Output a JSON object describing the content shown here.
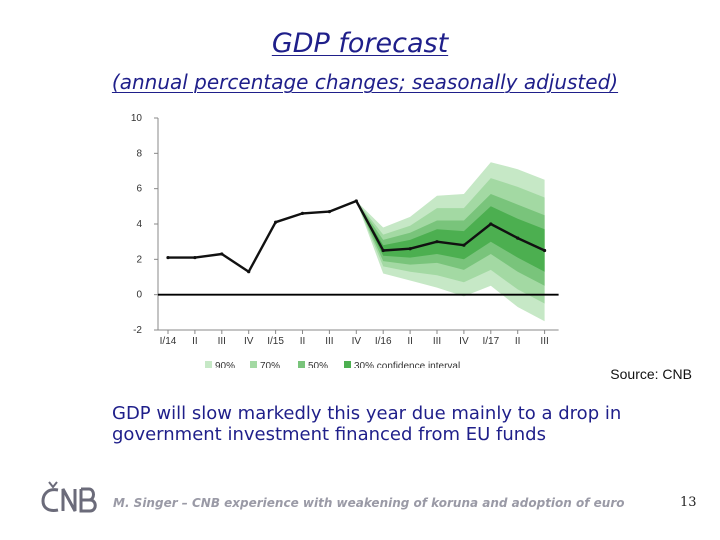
{
  "slide": {
    "title": "GDP forecast",
    "subtitle": "(annual percentage changes; seasonally adjusted)",
    "source": "Source: CNB",
    "body": "GDP will slow markedly this year due mainly to a drop in government investment financed from EU funds",
    "footer": "M. Singer – CNB experience with weakening of koruna and adoption of euro",
    "page_number": "13"
  },
  "colors": {
    "title": "#1f1f8a",
    "band_90": "#c6e8c6",
    "band_70": "#a3d9a3",
    "band_50": "#79c47b",
    "band_30": "#4caf50",
    "line": "#111111",
    "logo": "#6b6b7a"
  },
  "chart_data": {
    "type": "line",
    "x_tick_labels": [
      "I/14",
      "II",
      "III",
      "IV",
      "I/15",
      "II",
      "III",
      "IV",
      "I/16",
      "II",
      "III",
      "IV",
      "I/17",
      "II",
      "III"
    ],
    "y_ticks": [
      "-2",
      "0",
      "2",
      "4",
      "6",
      "8",
      "10"
    ],
    "ylim": [
      -2,
      10
    ],
    "legend_position": "bottom",
    "series": [
      {
        "name": "",
        "values": [
          2.1,
          2.1,
          2.3,
          1.3,
          4.1,
          4.6,
          4.7,
          5.3,
          2.5,
          2.6,
          3.0,
          2.8,
          4.0,
          3.2,
          2.5
        ]
      }
    ],
    "forecast_start_index": 7,
    "fan_half_widths": {
      "90%": [
        0,
        1.3,
        1.8,
        2.6,
        2.9,
        3.5,
        3.9,
        4.0
      ],
      "70%": [
        0,
        0.9,
        1.3,
        1.9,
        2.1,
        2.6,
        2.9,
        3.0
      ],
      "50%": [
        0,
        0.6,
        0.9,
        1.2,
        1.4,
        1.7,
        1.9,
        2.0
      ],
      "30%": [
        0,
        0.3,
        0.5,
        0.7,
        0.8,
        1.0,
        1.1,
        1.2
      ]
    },
    "legend": [
      "90%",
      "70%",
      "50%",
      "30% confidence interval"
    ]
  }
}
